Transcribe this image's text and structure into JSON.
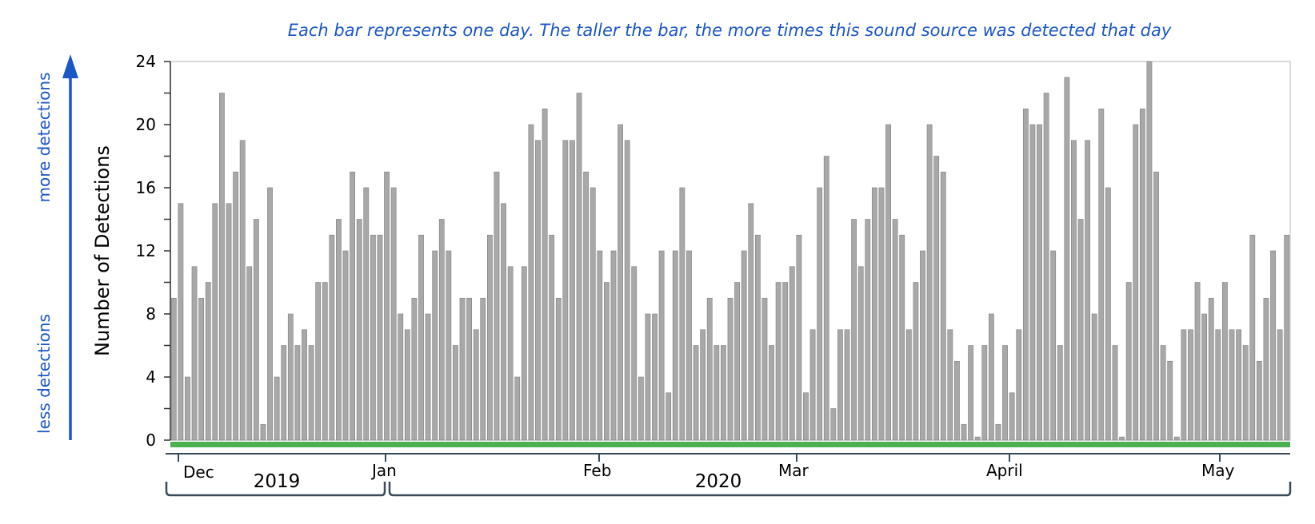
{
  "chart_data": {
    "type": "bar",
    "title": "Each bar represents one day. The taller the bar, the more times this sound source was detected that day",
    "ylabel": "Number of Detections",
    "xlabel": "",
    "ylim": [
      0,
      24
    ],
    "yticks": [
      0,
      4,
      8,
      12,
      16,
      20,
      24
    ],
    "arrow_labels": {
      "top": "more detections",
      "bottom": "less detections"
    },
    "months": [
      "Dec",
      "Jan",
      "Feb",
      "Mar",
      "April",
      "May"
    ],
    "years": [
      "2019",
      "2020"
    ],
    "grid": false,
    "values": [
      9,
      15,
      4,
      11,
      9,
      10,
      15,
      22,
      15,
      17,
      19,
      11,
      14,
      1,
      16,
      4,
      6,
      8,
      6,
      7,
      6,
      10,
      10,
      13,
      14,
      12,
      17,
      14,
      16,
      13,
      13,
      17,
      16,
      8,
      7,
      9,
      13,
      8,
      12,
      14,
      12,
      6,
      9,
      9,
      7,
      9,
      13,
      17,
      15,
      11,
      4,
      11,
      20,
      19,
      21,
      13,
      9,
      19,
      19,
      22,
      17,
      16,
      12,
      10,
      12,
      20,
      19,
      11,
      4,
      8,
      8,
      12,
      3,
      12,
      16,
      12,
      6,
      7,
      9,
      6,
      6,
      9,
      10,
      12,
      15,
      13,
      9,
      6,
      10,
      10,
      11,
      13,
      3,
      7,
      16,
      18,
      2,
      7,
      7,
      14,
      11,
      14,
      16,
      16,
      20,
      14,
      13,
      7,
      10,
      12,
      20,
      18,
      17,
      7,
      5,
      1,
      6,
      0.2,
      6,
      8,
      1,
      6,
      3,
      7,
      21,
      20,
      20,
      22,
      12,
      6,
      23,
      19,
      14,
      19,
      8,
      21,
      16,
      6,
      0.2,
      10,
      20,
      21,
      24,
      17,
      6,
      5,
      0.2,
      7,
      7,
      10,
      8,
      9,
      7,
      10,
      7,
      7,
      6,
      13,
      5,
      9,
      12,
      7,
      13
    ],
    "colors": {
      "bar": "#a8a8a8",
      "bar_edge": "#808080",
      "baseline": "#4caf50",
      "annotation": "#1a56c4"
    }
  }
}
